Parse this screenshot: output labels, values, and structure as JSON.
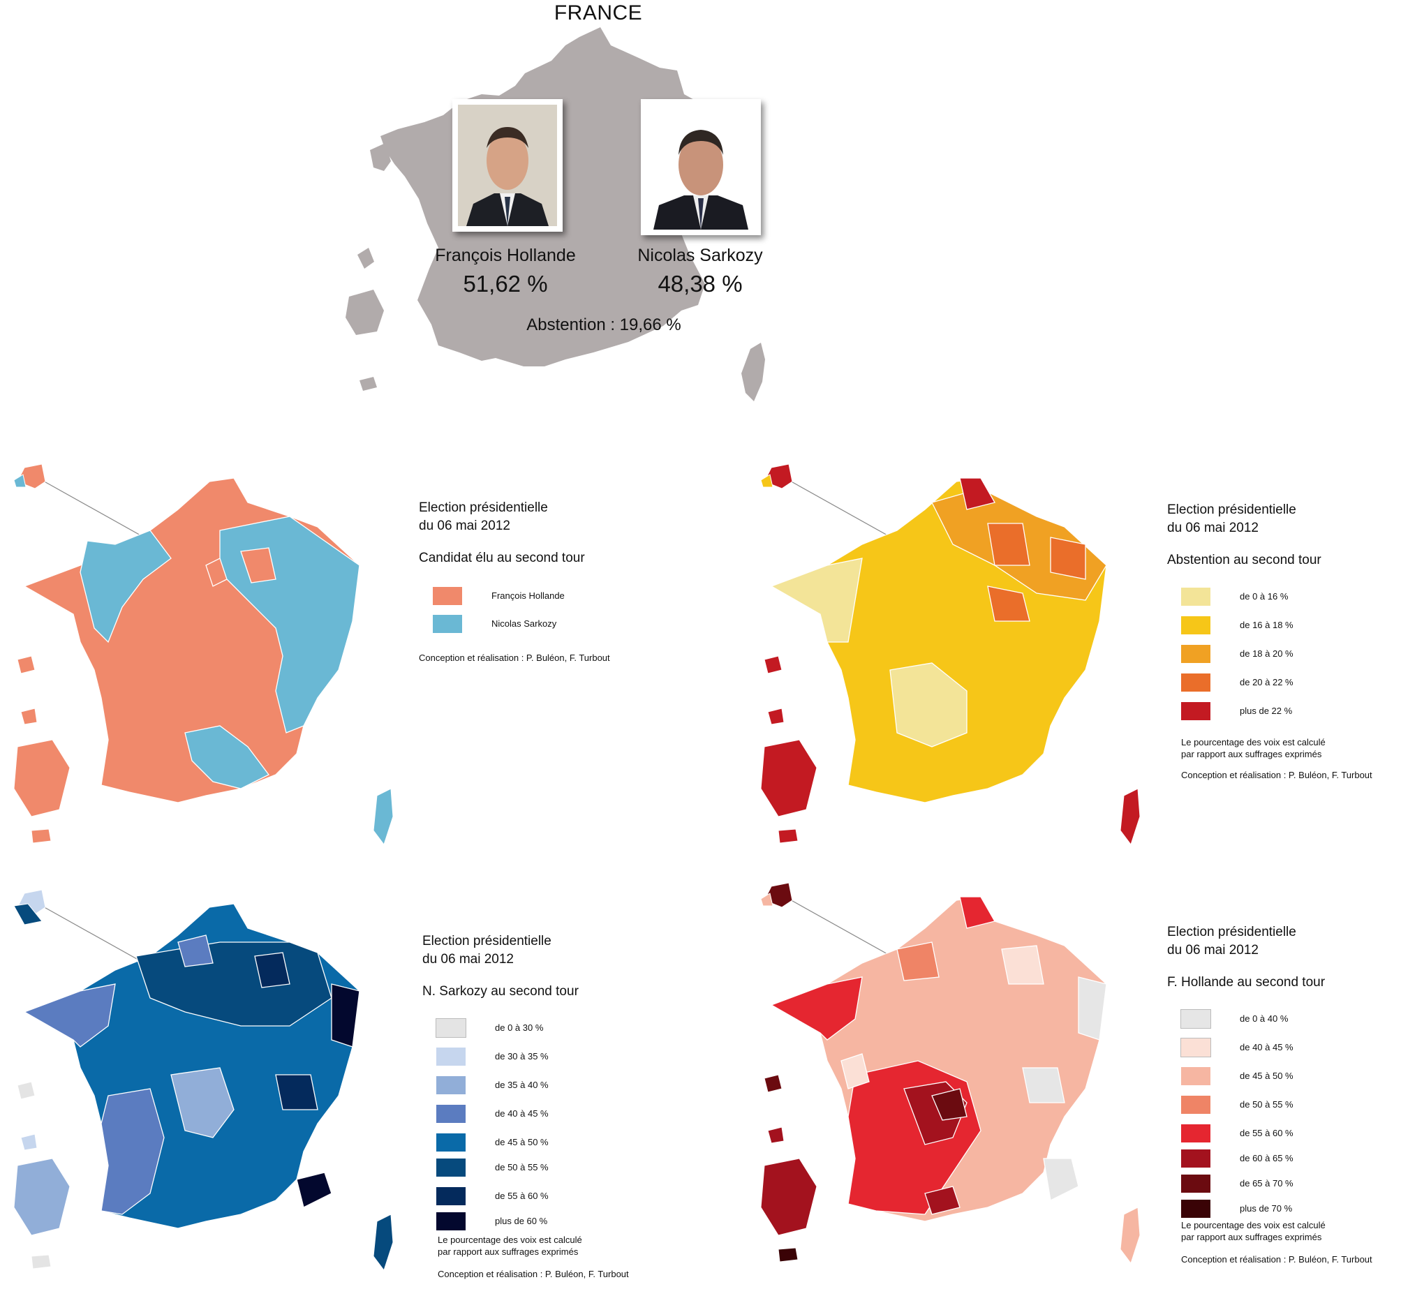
{
  "summary": {
    "title": "FRANCE",
    "candidates": [
      {
        "name": "François Hollande",
        "percent": "51,62 %"
      },
      {
        "name": "Nicolas Sarkozy",
        "percent": "48,38 %"
      }
    ],
    "abstention": "Abstention : 19,66 %",
    "map_color": "#b1abab"
  },
  "maps": [
    {
      "title_line1": "Election présidentielle",
      "title_line2": "du 06 mai 2012",
      "subtitle": "Candidat élu au second tour",
      "legend": [
        {
          "label": "François Hollande",
          "color": "#f0896b"
        },
        {
          "label": "Nicolas Sarkozy",
          "color": "#6ab8d4"
        }
      ],
      "credit": "Conception et réalisation : P. Buléon, F. Turbout"
    },
    {
      "title_line1": "Election présidentielle",
      "title_line2": "du 06 mai 2012",
      "subtitle": "Abstention au second tour",
      "legend": [
        {
          "label": "de 0 à 16 %",
          "color": "#f3e498"
        },
        {
          "label": "de 16 à 18 %",
          "color": "#f6c618"
        },
        {
          "label": "de 18 à 20 %",
          "color": "#f0a123"
        },
        {
          "label": "de 20 à 22 %",
          "color": "#ea6e2a"
        },
        {
          "label": "plus de 22 %",
          "color": "#c31a22"
        }
      ],
      "note_line1": "Le pourcentage des voix est calculé",
      "note_line2": "par rapport aux suffrages exprimés",
      "credit": "Conception et réalisation : P. Buléon, F. Turbout"
    },
    {
      "title_line1": "Election présidentielle",
      "title_line2": "du 06 mai 2012",
      "subtitle": "N. Sarkozy au second tour",
      "legend": [
        {
          "label": "de 0 à 30 %",
          "color": "#e4e4e4"
        },
        {
          "label": "de 30 à 35 %",
          "color": "#c6d6ee"
        },
        {
          "label": "de 35 à 40 %",
          "color": "#91aed8"
        },
        {
          "label": "de 40 à 45 %",
          "color": "#5b7cc0"
        },
        {
          "label": "de 45 à 50 %",
          "color": "#0a6aa8"
        },
        {
          "label": "de 50 à 55 %",
          "color": "#064a7d"
        },
        {
          "label": "de 55 à 60 %",
          "color": "#042a5c"
        },
        {
          "label": "plus de 60 %",
          "color": "#03082e"
        }
      ],
      "note_line1": "Le pourcentage des voix est calculé",
      "note_line2": "par rapport aux suffrages exprimés",
      "credit": "Conception et réalisation : P. Buléon, F. Turbout"
    },
    {
      "title_line1": "Election présidentielle",
      "title_line2": "du 06 mai 2012",
      "subtitle": "F. Hollande au second tour",
      "legend": [
        {
          "label": "de 0 à 40 %",
          "color": "#e6e6e6"
        },
        {
          "label": "de 40 à 45 %",
          "color": "#fbe0d6"
        },
        {
          "label": "de 45 à 50 %",
          "color": "#f6b6a2"
        },
        {
          "label": "de 50 à 55 %",
          "color": "#ef8466"
        },
        {
          "label": "de 55 à 60 %",
          "color": "#e52630"
        },
        {
          "label": "de 60 à 65 %",
          "color": "#a3121e"
        },
        {
          "label": "de 65 à 70 %",
          "color": "#6b0b10"
        },
        {
          "label": "plus de 70 %",
          "color": "#3a0306"
        }
      ],
      "note_line1": "Le pourcentage des voix est calculé",
      "note_line2": "par rapport aux suffrages exprimés",
      "credit": "Conception et réalisation : P. Buléon, F. Turbout"
    }
  ]
}
